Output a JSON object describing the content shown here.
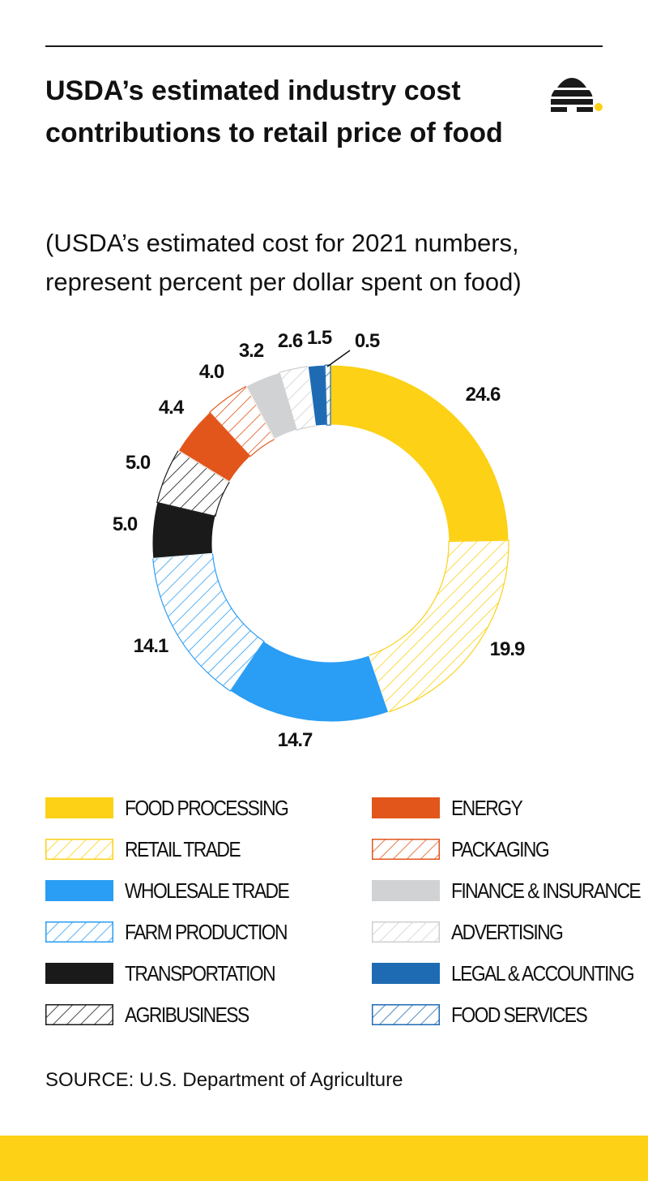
{
  "title": "USDA’s estimated industry cost contributions to retail price of food",
  "subtitle": "(USDA’s estimated cost for 2021 numbers, represent percent per dollar spent on food)",
  "source": "SOURCE: U.S. Department of Agriculture",
  "logo_icon": "beehive-icon",
  "colors": {
    "yellow": "#fcd116",
    "blue": "#2a9df4",
    "dark_blue": "#1f6bb3",
    "black": "#1a1a1a",
    "orange": "#e2561b",
    "gray": "#d0d2d4",
    "light_gray": "#cfcfcf",
    "footer": "#fcd116"
  },
  "chart_data": {
    "type": "donut",
    "title": "USDA’s estimated industry cost contributions to retail price of food",
    "unit": "percent per dollar spent on food",
    "legend_placement": "bottom",
    "segments": [
      {
        "name": "FOOD PROCESSING",
        "value": 24.6,
        "label": "24.6",
        "color": "#fcd116",
        "pattern": "solid"
      },
      {
        "name": "RETAIL TRADE",
        "value": 19.9,
        "label": "19.9",
        "color": "#fcd116",
        "pattern": "hatched"
      },
      {
        "name": "WHOLESALE TRADE",
        "value": 14.7,
        "label": "14.7",
        "color": "#2a9df4",
        "pattern": "solid"
      },
      {
        "name": "FARM PRODUCTION",
        "value": 14.1,
        "label": "14.1",
        "color": "#2a9df4",
        "pattern": "hatched"
      },
      {
        "name": "TRANSPORTATION",
        "value": 5.0,
        "label": "5.0",
        "color": "#1a1a1a",
        "pattern": "solid"
      },
      {
        "name": "AGRIBUSINESS",
        "value": 5.0,
        "label": "5.0",
        "color": "#1a1a1a",
        "pattern": "hatched"
      },
      {
        "name": "ENERGY",
        "value": 4.4,
        "label": "4.4",
        "color": "#e2561b",
        "pattern": "solid"
      },
      {
        "name": "PACKAGING",
        "value": 4.0,
        "label": "4.0",
        "color": "#e2561b",
        "pattern": "hatched"
      },
      {
        "name": "FINANCE & INSURANCE",
        "value": 3.2,
        "label": "3.2",
        "color": "#d0d2d4",
        "pattern": "solid"
      },
      {
        "name": "ADVERTISING",
        "value": 2.6,
        "label": "2.6",
        "color": "#cfcfcf",
        "pattern": "hatched"
      },
      {
        "name": "LEGAL & ACCOUNTING",
        "value": 1.5,
        "label": "1.5",
        "color": "#1f6bb3",
        "pattern": "solid"
      },
      {
        "name": "FOOD SERVICES",
        "value": 0.5,
        "label": "0.5",
        "color": "#1f6bb3",
        "pattern": "hatched"
      }
    ]
  }
}
